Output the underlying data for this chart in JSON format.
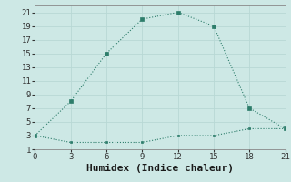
{
  "line1_x": [
    0,
    3,
    6,
    9,
    12,
    15,
    18,
    21
  ],
  "line1_y": [
    3,
    8,
    15,
    20,
    21,
    19,
    7,
    4
  ],
  "line2_x": [
    0,
    3,
    6,
    9,
    12,
    15,
    18,
    21
  ],
  "line2_y": [
    3,
    2,
    2,
    2,
    3,
    3,
    4,
    4
  ],
  "line_color": "#2d7d6b",
  "bg_color": "#cde8e5",
  "grid_color": "#b8d8d5",
  "xlabel": "Humidex (Indice chaleur)",
  "xlabel_fontsize": 8,
  "xlim": [
    0,
    21
  ],
  "ylim": [
    1,
    22
  ],
  "xticks": [
    0,
    3,
    6,
    9,
    12,
    15,
    18,
    21
  ],
  "yticks": [
    1,
    3,
    5,
    7,
    9,
    11,
    13,
    15,
    17,
    19,
    21
  ],
  "tick_fontsize": 6.5
}
